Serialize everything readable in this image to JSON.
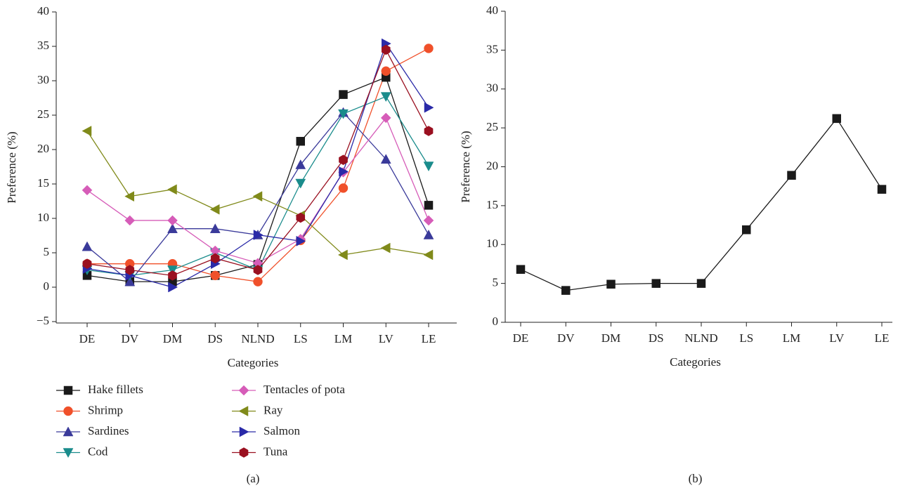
{
  "chart_data": [
    {
      "type": "line",
      "caption": "(a)",
      "xlabel": "Categories",
      "ylabel": "Preference (%)",
      "categories": [
        "DE",
        "DV",
        "DM",
        "DS",
        "NLND",
        "LS",
        "LM",
        "LV",
        "LE"
      ],
      "ylim": [
        -5,
        40
      ],
      "yticks": [
        {
          "value": -5,
          "label": "−5"
        },
        0,
        5,
        10,
        15,
        20,
        25,
        30,
        35,
        40
      ],
      "legend": "bottom",
      "series": [
        {
          "name": "Hake fillets",
          "color": "#1a1a1a",
          "marker": "square",
          "values": [
            1.7,
            0.8,
            0.8,
            1.7,
            3.3,
            21.2,
            28.0,
            30.5,
            11.9
          ]
        },
        {
          "name": "Shrimp",
          "color": "#f0502a",
          "marker": "circle",
          "values": [
            3.4,
            3.4,
            3.4,
            1.7,
            0.8,
            6.8,
            14.4,
            31.4,
            34.7
          ]
        },
        {
          "name": "Sardines",
          "color": "#3a3a9a",
          "marker": "triangle-up",
          "values": [
            5.9,
            0.8,
            8.5,
            8.5,
            7.6,
            17.8,
            25.4,
            18.6,
            7.6
          ]
        },
        {
          "name": "Cod",
          "color": "#1a8c8c",
          "marker": "triangle-down",
          "values": [
            2.5,
            1.7,
            2.5,
            5.0,
            2.5,
            15.1,
            25.2,
            27.7,
            17.6
          ]
        },
        {
          "name": "Tentacles of pota",
          "color": "#d65cb8",
          "marker": "diamond",
          "values": [
            14.1,
            9.7,
            9.7,
            5.3,
            3.5,
            7.0,
            16.7,
            24.6,
            9.7
          ]
        },
        {
          "name": "Ray",
          "color": "#808a1a",
          "marker": "triangle-left",
          "values": [
            22.7,
            13.2,
            14.2,
            11.3,
            13.2,
            10.4,
            4.7,
            5.7,
            4.7
          ]
        },
        {
          "name": "Salmon",
          "color": "#2a2aa8",
          "marker": "triangle-right",
          "values": [
            2.7,
            1.7,
            0.0,
            3.4,
            7.6,
            6.7,
            16.8,
            35.4,
            26.1
          ]
        },
        {
          "name": "Tuna",
          "color": "#9a1020",
          "marker": "hexagon",
          "values": [
            3.4,
            2.5,
            1.7,
            4.2,
            2.5,
            10.1,
            18.5,
            34.5,
            22.7
          ]
        }
      ]
    },
    {
      "type": "line",
      "caption": "(b)",
      "xlabel": "Categories",
      "ylabel": "Preference (%)",
      "categories": [
        "DE",
        "DV",
        "DM",
        "DS",
        "NLND",
        "LS",
        "LM",
        "LV",
        "LE"
      ],
      "ylim": [
        0,
        40
      ],
      "yticks": [
        0,
        5,
        10,
        15,
        20,
        25,
        30,
        35,
        40
      ],
      "series": [
        {
          "color": "#1a1a1a",
          "marker": "square",
          "values": [
            6.8,
            4.1,
            4.9,
            5.0,
            5.0,
            11.9,
            18.9,
            26.2,
            17.1
          ]
        }
      ]
    }
  ]
}
